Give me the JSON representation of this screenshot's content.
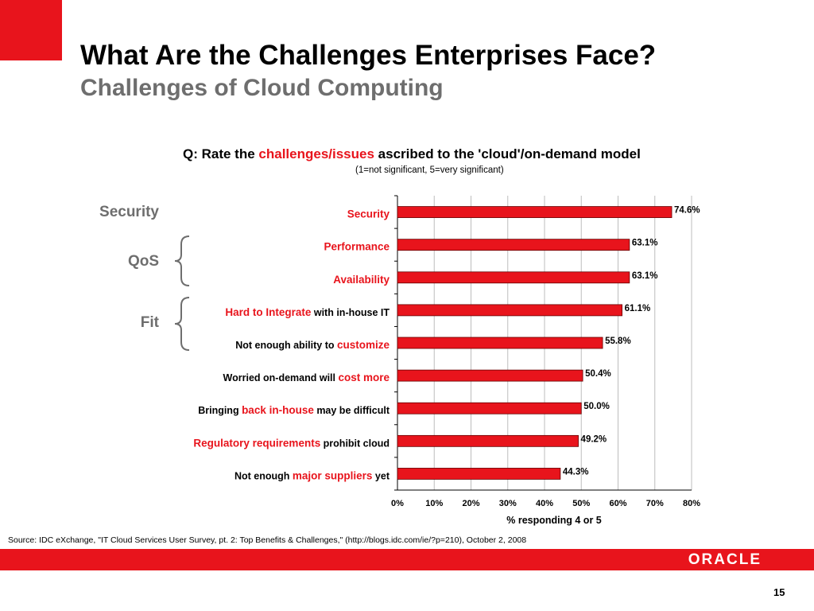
{
  "slide": {
    "title": "What Are the Challenges Enterprises Face?",
    "subtitle": "Challenges of Cloud Computing",
    "groups": [
      "Security",
      "QoS",
      "Fit"
    ],
    "source": "Source: IDC eXchange, \"IT Cloud Services User Survey, pt. 2: Top Benefits & Challenges,\" (http://blogs.idc.com/ie/?p=210), October 2, 2008",
    "logo": "ORACLE",
    "page_number": "15",
    "accent_color": "#e8141c"
  },
  "chart_data": {
    "type": "bar",
    "orientation": "horizontal",
    "title_prefix": "Q: Rate the ",
    "title_highlight": "challenges/issues",
    "title_suffix": " ascribed to the 'cloud'/on-demand model",
    "note": "(1=not significant, 5=very significant)",
    "xlabel": "% responding 4 or 5",
    "xlim": [
      0,
      80
    ],
    "x_ticks": [
      "0%",
      "10%",
      "20%",
      "30%",
      "40%",
      "50%",
      "60%",
      "70%",
      "80%"
    ],
    "grid": true,
    "bar_color": "#e8141c",
    "categories": [
      [
        {
          "t": "Security",
          "hl": true
        }
      ],
      [
        {
          "t": "Performance",
          "hl": true
        }
      ],
      [
        {
          "t": "Availability",
          "hl": true
        }
      ],
      [
        {
          "t": "Hard to Integrate",
          "hl": true
        },
        {
          "t": " with in-house IT",
          "hl": false
        }
      ],
      [
        {
          "t": "Not enough ability to ",
          "hl": false
        },
        {
          "t": "customize",
          "hl": true
        }
      ],
      [
        {
          "t": "Worried on-demand will ",
          "hl": false
        },
        {
          "t": "cost more",
          "hl": true
        }
      ],
      [
        {
          "t": "Bringing ",
          "hl": false
        },
        {
          "t": "back in-house",
          "hl": true
        },
        {
          "t": " may be difficult",
          "hl": false
        }
      ],
      [
        {
          "t": "Regulatory requirements",
          "hl": true
        },
        {
          "t": " prohibit cloud",
          "hl": false
        }
      ],
      [
        {
          "t": "Not enough ",
          "hl": false
        },
        {
          "t": "major suppliers",
          "hl": true
        },
        {
          "t": " yet",
          "hl": false
        }
      ]
    ],
    "values": [
      74.6,
      63.1,
      63.1,
      61.1,
      55.8,
      50.4,
      50.0,
      49.2,
      44.3
    ],
    "value_labels": [
      "74.6%",
      "63.1%",
      "63.1%",
      "61.1%",
      "55.8%",
      "50.4%",
      "50.0%",
      "49.2%",
      "44.3%"
    ]
  }
}
